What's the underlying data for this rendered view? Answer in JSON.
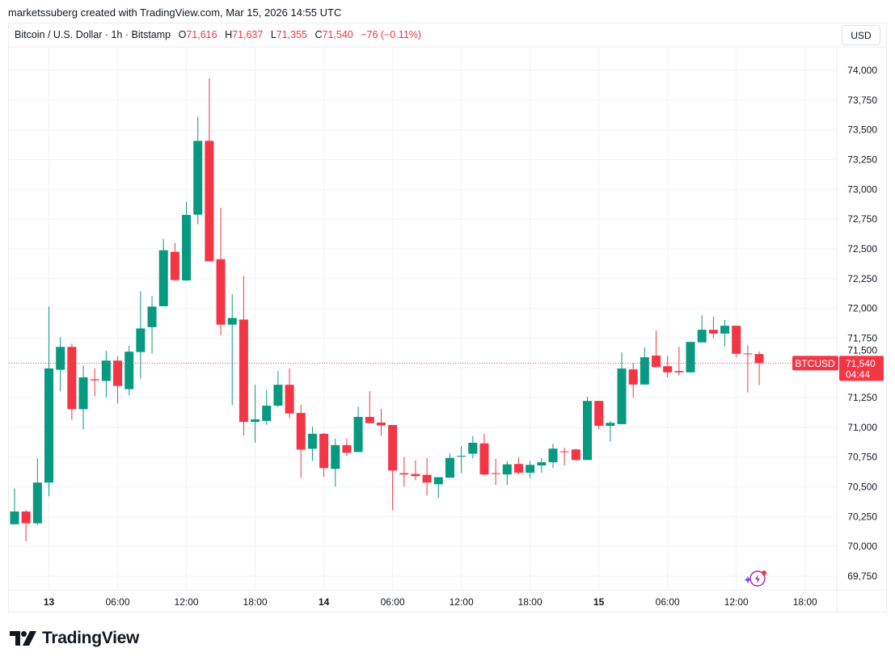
{
  "credit": "marketssuberg created with TradingView.com, Mar 15, 2026 14:55 UTC",
  "legend": {
    "symbol_name": "Bitcoin / U.S. Dollar · 1h · Bitstamp",
    "o_label": "O",
    "o": "71,616",
    "h_label": "H",
    "h": "71,637",
    "l_label": "L",
    "l": "71,355",
    "c_label": "C",
    "c": "71,540",
    "change": "−76 (−0.11%)"
  },
  "currency": "USD",
  "last_price": {
    "symbol": "BTCUSD",
    "price": "71,540",
    "countdown": "04:44",
    "value": 71540
  },
  "brand": "TradingView",
  "colors": {
    "up": "#089981",
    "down": "#f23645",
    "grid": "#f0f3fa",
    "text": "#131722"
  },
  "chart_data": {
    "type": "candlestick",
    "title": "",
    "interval": "1h",
    "first_bar": "Mar 12 21:00",
    "last_bar": "Mar 15 14:00",
    "ylim": [
      69650,
      74150
    ],
    "grid": true,
    "y_ticks": [
      69750,
      70000,
      70250,
      70500,
      70750,
      71000,
      71250,
      71500,
      71750,
      72000,
      72250,
      72500,
      72750,
      73000,
      73250,
      73500,
      73750,
      74000
    ],
    "y_tick_labels": [
      "69,750",
      "70,000",
      "70,250",
      "70,500",
      "70,750",
      "71,000",
      "71,250",
      "71,500",
      "71,750",
      "72,000",
      "72,250",
      "72,500",
      "72,750",
      "73,000",
      "73,250",
      "73,500",
      "73,750",
      "74,000"
    ],
    "x_ticks": [
      {
        "label": "13",
        "bar": 3,
        "bold": true
      },
      {
        "label": "06:00",
        "bar": 9
      },
      {
        "label": "12:00",
        "bar": 15
      },
      {
        "label": "18:00",
        "bar": 21
      },
      {
        "label": "14",
        "bar": 27,
        "bold": true
      },
      {
        "label": "06:00",
        "bar": 33
      },
      {
        "label": "12:00",
        "bar": 39
      },
      {
        "label": "18:00",
        "bar": 45
      },
      {
        "label": "15",
        "bar": 51,
        "bold": true
      },
      {
        "label": "06:00",
        "bar": 57
      },
      {
        "label": "12:00",
        "bar": 63
      },
      {
        "label": "18:00",
        "bar": 69
      }
    ],
    "ohlc": [
      [
        70186,
        70488,
        70186,
        70293
      ],
      [
        70293,
        70306,
        70044,
        70194
      ],
      [
        70194,
        70739,
        70180,
        70536
      ],
      [
        70536,
        72015,
        70423,
        71495
      ],
      [
        71484,
        71759,
        71305,
        71676
      ],
      [
        71676,
        71703,
        71064,
        71153
      ],
      [
        71153,
        71519,
        70984,
        71420
      ],
      [
        71404,
        71495,
        71262,
        71395
      ],
      [
        71390,
        71644,
        71254,
        71561
      ],
      [
        71561,
        71596,
        71201,
        71348
      ],
      [
        71321,
        71684,
        71268,
        71636
      ],
      [
        71633,
        72144,
        71409,
        71831
      ],
      [
        71842,
        72104,
        71620,
        72015
      ],
      [
        72018,
        72582,
        72018,
        72488
      ],
      [
        72475,
        72550,
        72232,
        72237
      ],
      [
        72234,
        72894,
        72234,
        72785
      ],
      [
        72787,
        73610,
        72707,
        73407
      ],
      [
        73407,
        73933,
        72395,
        72395
      ],
      [
        72413,
        72846,
        71775,
        71863
      ],
      [
        71863,
        72117,
        71187,
        71919
      ],
      [
        71906,
        72272,
        70931,
        71046
      ],
      [
        71046,
        71358,
        70870,
        71067
      ],
      [
        71054,
        71311,
        71022,
        71182
      ],
      [
        71182,
        71473,
        71171,
        71358
      ],
      [
        71358,
        71495,
        71076,
        71117
      ],
      [
        71121,
        71189,
        70577,
        70813
      ],
      [
        70820,
        71007,
        70718,
        70946
      ],
      [
        70946,
        70953,
        70583,
        70658
      ],
      [
        70651,
        70905,
        70502,
        70851
      ],
      [
        70851,
        70905,
        70759,
        70786
      ],
      [
        70793,
        71176,
        70793,
        71088
      ],
      [
        71088,
        71304,
        71036,
        71036
      ],
      [
        71040,
        71155,
        70928,
        71016
      ],
      [
        71020,
        71020,
        70306,
        70637
      ],
      [
        70615,
        70752,
        70502,
        70604
      ],
      [
        70608,
        70723,
        70556,
        70590
      ],
      [
        70601,
        70743,
        70428,
        70536
      ],
      [
        70522,
        70581,
        70408,
        70581
      ],
      [
        70577,
        70784,
        70577,
        70743
      ],
      [
        70754,
        70844,
        70617,
        70761
      ],
      [
        70779,
        70926,
        70739,
        70871
      ],
      [
        70865,
        70946,
        70597,
        70604
      ],
      [
        70615,
        70736,
        70516,
        70612
      ],
      [
        70604,
        70716,
        70516,
        70689
      ],
      [
        70692,
        70746,
        70605,
        70619
      ],
      [
        70619,
        70719,
        70572,
        70685
      ],
      [
        70680,
        70739,
        70619,
        70707
      ],
      [
        70707,
        70862,
        70660,
        70821
      ],
      [
        70798,
        70828,
        70680,
        70797
      ],
      [
        70814,
        70821,
        70719,
        70726
      ],
      [
        70726,
        71256,
        70726,
        71222
      ],
      [
        71222,
        71222,
        70984,
        71013
      ],
      [
        71013,
        71052,
        70882,
        71038
      ],
      [
        71027,
        71630,
        71027,
        71494
      ],
      [
        71487,
        71539,
        71249,
        71360
      ],
      [
        71360,
        71670,
        71360,
        71589
      ],
      [
        71603,
        71813,
        71501,
        71507
      ],
      [
        71514,
        71603,
        71421,
        71462
      ],
      [
        71473,
        71677,
        71435,
        71462
      ],
      [
        71462,
        71718,
        71462,
        71718
      ],
      [
        71714,
        71942,
        71714,
        71820
      ],
      [
        71820,
        71929,
        71748,
        71788
      ],
      [
        71788,
        71902,
        71680,
        71854
      ],
      [
        71854,
        71854,
        71591,
        71618
      ],
      [
        71621,
        71691,
        71292,
        71620
      ],
      [
        71616,
        71637,
        71355,
        71540
      ]
    ]
  }
}
